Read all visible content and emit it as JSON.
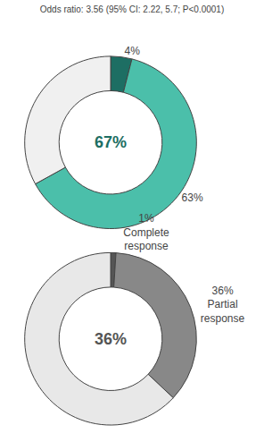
{
  "chart_data": [
    {
      "type": "donut",
      "title": "Odds ratio: 3.56 (95% CI: 2.22, 5.7; P<0.0001)",
      "values": [
        4,
        63,
        33
      ],
      "value_labels": [
        "4%",
        "63%",
        null
      ],
      "colors": [
        "#1d6e63",
        "#4bbfaa",
        "#f0f0f0"
      ],
      "annotations": [
        "67%"
      ]
    },
    {
      "type": "donut",
      "categories": [
        "Complete\nresponse",
        "Partial\nresponse",
        null
      ],
      "values": [
        1,
        36,
        63
      ],
      "value_labels": [
        "1%",
        "36%",
        null
      ],
      "colors": [
        "#555555",
        "#888888",
        "#e8e8e8"
      ],
      "annotations": [
        "36%"
      ]
    }
  ]
}
